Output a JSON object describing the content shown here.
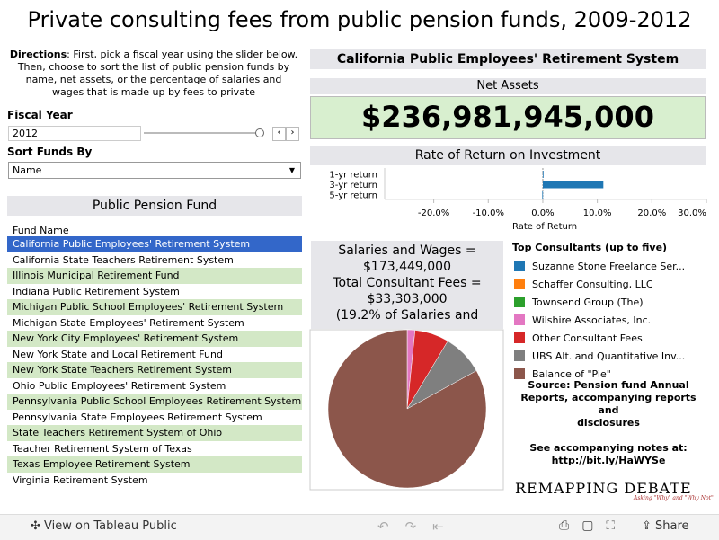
{
  "title": "Private consulting fees from public pension funds, 2009-2012",
  "directions": {
    "label": "Directions",
    "text": ": First, pick a fiscal year using the slider below. Then, choose to sort the list of public pension funds by name, net assets, or the percentage of salaries and wages that is made up by fees to private"
  },
  "fiscal_year": {
    "label": "Fiscal Year",
    "value": "2012"
  },
  "sort": {
    "label": "Sort Funds By",
    "value": "Name"
  },
  "fund_list": {
    "title": "Public Pension Fund",
    "header": "Fund Name",
    "selected": 0,
    "rows": [
      "California Public Employees' Retirement System",
      "California State Teachers Retirement System",
      "Illinois Municipal Retirement Fund",
      "Indiana Public Retirement System",
      "Michigan Public School Employees' Retirement System",
      "Michigan State Employees' Retirement System",
      "New York City Employees' Retirement System",
      "New York State and Local Retirement Fund",
      "New York State Teachers Retirement System",
      "Ohio Public Employees' Retirement System",
      "Pennsylvania Public School Employees Retirement System",
      "Pennsylvania State Employees Retirement System",
      "State Teachers Retirement System of Ohio",
      "Teacher Retirement System of Texas",
      "Texas Employee Retirement System",
      "Virginia Retirement System"
    ]
  },
  "fund_name": "California Public Employees' Retirement System",
  "net_assets": {
    "title": "Net Assets",
    "value": "$236,981,945,000"
  },
  "return_chart": {
    "type": "bar",
    "title": "Rate of Return on Investment",
    "x_label": "Rate of Return",
    "categories": [
      "1-yr return",
      "3-yr return",
      "5-yr return"
    ],
    "values": [
      0.1,
      11.1,
      -0.1
    ],
    "color": "#1f77b4",
    "xlim": [
      -29,
      30
    ],
    "xticks": [
      {
        "value": -20,
        "label": "-20.0%"
      },
      {
        "value": -10,
        "label": "-10.0%"
      },
      {
        "value": 0,
        "label": "0.0%"
      },
      {
        "value": 10,
        "label": "10.0%"
      },
      {
        "value": 20,
        "label": "20.0%"
      },
      {
        "value": 30,
        "label": "30.0%"
      }
    ]
  },
  "salaries": {
    "lines": [
      "Salaries and Wages =",
      "$173,449,000",
      "Total Consultant Fees =",
      "$33,303,000",
      "(19.2% of Salaries and"
    ]
  },
  "consultants": {
    "type": "pie",
    "title": "Top Consultants (up to five)",
    "series": [
      {
        "name": "Suzanne Stone Freelance Ser...",
        "color": "#1f77b4"
      },
      {
        "name": "Schaffer Consulting, LLC",
        "color": "#ff7f0e"
      },
      {
        "name": "Townsend Group (The)",
        "color": "#2ca02c"
      },
      {
        "name": "Wilshire Associates, Inc.",
        "color": "#e377c2"
      },
      {
        "name": "Other Consultant Fees",
        "color": "#d62728"
      },
      {
        "name": "UBS Alt. and Quantitative Inv...",
        "color": "#7f7f7f"
      },
      {
        "name": "Balance of \"Pie\"",
        "color": "#8c564b"
      }
    ],
    "values": [
      0,
      0,
      0,
      1.6,
      7,
      8.4,
      83
    ]
  },
  "source": [
    "Source: Pension fund Annual Reports, accompanying reports and",
    "disclosures",
    "See accompanying notes at:",
    "http://bit.ly/HaWYSe"
  ],
  "logo": {
    "name": "REMAPPING DEBATE",
    "tagline": "Asking \"Why\" and \"Why Not\""
  },
  "footer": {
    "view": "View on Tableau Public",
    "share": "Share"
  }
}
